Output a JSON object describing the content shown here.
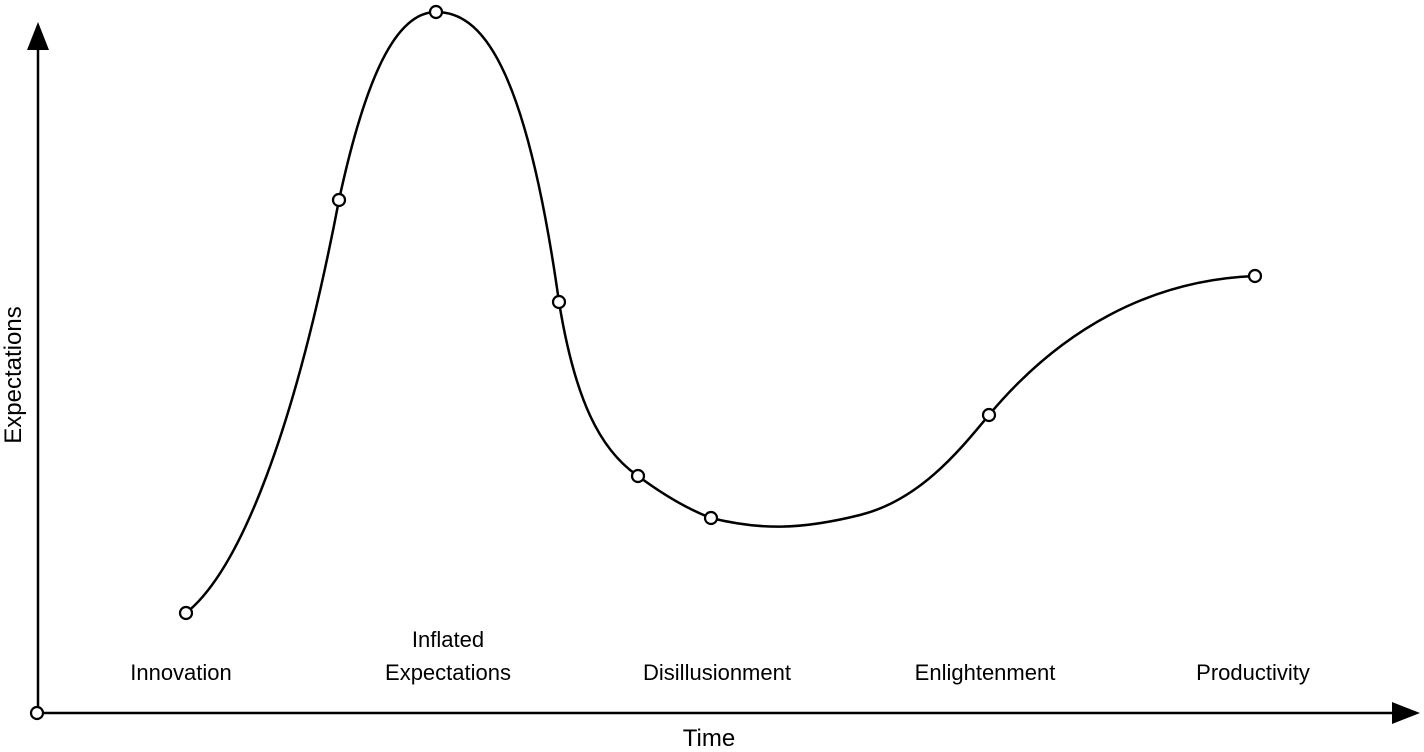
{
  "axes": {
    "x_label": "Time",
    "y_label": "Expectations"
  },
  "phases": {
    "innovation": "Innovation",
    "inflated_line1": "Inflated",
    "inflated_line2": "Expectations",
    "disillusionment": "Disillusionment",
    "enlightenment": "Enlightenment",
    "productivity": "Productivity"
  },
  "curve": {
    "color": "#000000",
    "marker_fill": "#ffffff",
    "marker_count": 9
  }
}
